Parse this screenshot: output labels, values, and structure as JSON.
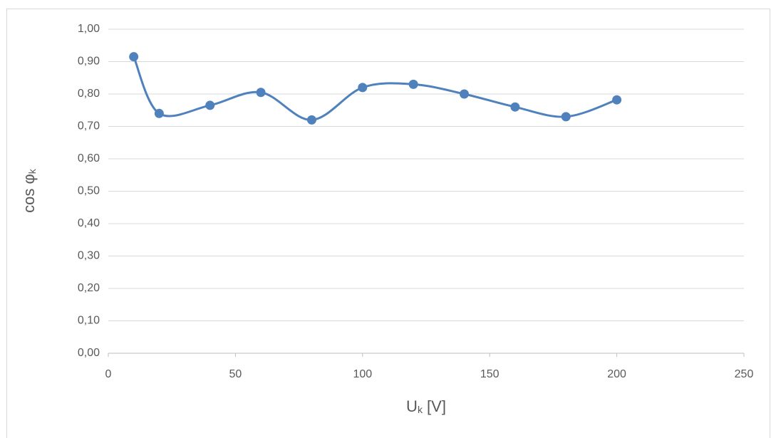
{
  "chart_data": {
    "type": "scatter_smooth",
    "xlabel": {
      "base": "U",
      "sub": "k",
      "rest": " [V]"
    },
    "ylabel": {
      "base": "cos φ",
      "sub": "k"
    },
    "x": [
      10,
      20,
      40,
      60,
      80,
      100,
      120,
      140,
      160,
      180,
      200
    ],
    "series": [
      {
        "color": "#4f81bd",
        "values": [
          0.915,
          0.74,
          0.765,
          0.805,
          0.72,
          0.82,
          0.83,
          0.8,
          0.76,
          0.73,
          0.782
        ]
      }
    ],
    "xlim": [
      0,
      250
    ],
    "xticks": [
      0,
      50,
      100,
      150,
      200,
      250
    ],
    "ylim": [
      0,
      1
    ],
    "yticks": [
      {
        "value": 0,
        "label": "0,00"
      },
      {
        "value": 0.1,
        "label": "0,10"
      },
      {
        "value": 0.2,
        "label": "0,20"
      },
      {
        "value": 0.3,
        "label": "0,30"
      },
      {
        "value": 0.4,
        "label": "0,40"
      },
      {
        "value": 0.5,
        "label": "0,50"
      },
      {
        "value": 0.6,
        "label": "0,60"
      },
      {
        "value": 0.7,
        "label": "0,70"
      },
      {
        "value": 0.8,
        "label": "0,80"
      },
      {
        "value": 0.9,
        "label": "0,90"
      },
      {
        "value": 1,
        "label": "1,00"
      }
    ],
    "grid": true
  }
}
